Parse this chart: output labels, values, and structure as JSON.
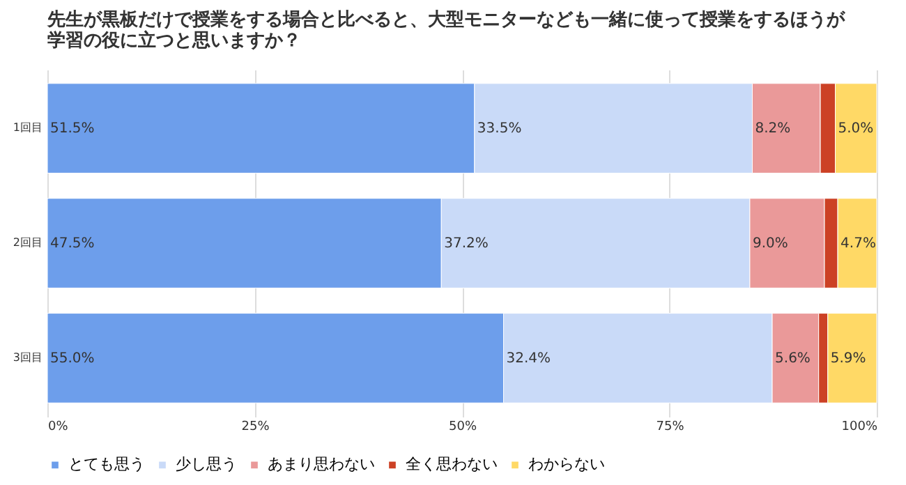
{
  "chart_data": {
    "type": "bar",
    "orientation": "horizontal",
    "stacked": true,
    "title": "先生が黒板だけで授業をする場合と比べると、大型モニターなども一緒に使って授業をするほうが学習の役に立つと思いますか？",
    "categories": [
      "1回目",
      "2回目",
      "3回目"
    ],
    "series": [
      {
        "name": "とても思う",
        "color": "#6d9eeb",
        "values": [
          51.5,
          47.5,
          55.0
        ],
        "value_labels": [
          "51.5%",
          "47.5%",
          "55.0%"
        ]
      },
      {
        "name": "少し思う",
        "color": "#c9daf8",
        "values": [
          33.5,
          37.2,
          32.4
        ],
        "value_labels": [
          "33.5%",
          "37.2%",
          "32.4%"
        ]
      },
      {
        "name": "あまり思わない",
        "color": "#ea9999",
        "values": [
          8.2,
          9.0,
          5.6
        ],
        "value_labels": [
          "8.2%",
          "9.0%",
          "5.6%"
        ]
      },
      {
        "name": "全く思わない",
        "color": "#cc4125",
        "values": [
          1.8,
          1.6,
          1.1
        ],
        "value_labels": [
          null,
          null,
          null
        ]
      },
      {
        "name": "わからない",
        "color": "#ffd966",
        "values": [
          5.0,
          4.7,
          5.9
        ],
        "value_labels": [
          "5.0%",
          "4.7%",
          "5.9%"
        ]
      }
    ],
    "xlim": [
      0,
      100
    ],
    "xticks": [
      {
        "value": 0,
        "label": "0%"
      },
      {
        "value": 25,
        "label": "25%"
      },
      {
        "value": 50,
        "label": "50%"
      },
      {
        "value": 75,
        "label": "75%"
      },
      {
        "value": 100,
        "label": "100%"
      }
    ],
    "grid": "x",
    "legend": "bottom"
  }
}
